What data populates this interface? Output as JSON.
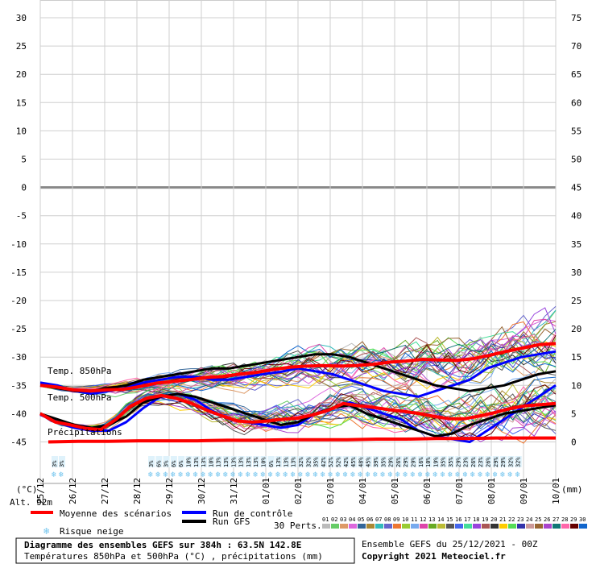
{
  "chart_data": {
    "type": "line",
    "left_axis": {
      "ticks": [
        "30",
        "25",
        "20",
        "15",
        "10",
        "5",
        "0",
        "-5",
        "-10",
        "-15",
        "-20",
        "-25",
        "-30",
        "-35",
        "-40",
        "-45"
      ],
      "unit": "(°C)"
    },
    "right_axis": {
      "ticks": [
        "75",
        "70",
        "65",
        "60",
        "55",
        "50",
        "45",
        "40",
        "35",
        "30",
        "25",
        "20",
        "15",
        "10",
        "5",
        "0"
      ],
      "unit": "(mm)"
    },
    "x_ticks": [
      "25/12",
      "26/12",
      "27/12",
      "28/12",
      "29/12",
      "30/12",
      "31/12",
      "01/01",
      "02/01",
      "03/01",
      "04/01",
      "05/01",
      "06/01",
      "07/01",
      "08/01",
      "09/01",
      "10/01"
    ],
    "annotations": {
      "t850": "Temp. 850hPa",
      "t500": "Temp. 500hPa",
      "precip": "Précipitations",
      "altitude": "Alt. 92m"
    },
    "snow_risk_pct": [
      "3%",
      "3%",
      "3%",
      "6%",
      "3%",
      "6%",
      "6%",
      "10%",
      "13%",
      "13%",
      "10%",
      "13%",
      "13%",
      "13%",
      "13%",
      "13%",
      "13%",
      "10%",
      "6%",
      "13%",
      "13%",
      "13%",
      "32%",
      "32%",
      "35%",
      "42%",
      "52%",
      "52%",
      "42%",
      "45%",
      "48%",
      "45%",
      "39%",
      "35%",
      "29%",
      "26%",
      "29%",
      "29%",
      "16%",
      "10%",
      "19%",
      "35%",
      "35%",
      "29%",
      "23%",
      "26%",
      "23%",
      "26%",
      "29%",
      "29%",
      "32%",
      "32%"
    ],
    "series": [
      {
        "name": "Moyenne des scénarios",
        "color": "#ff0000",
        "t850": [
          -35,
          -35.3,
          -35.8,
          -36,
          -35.8,
          -35.7,
          -35.2,
          -34.6,
          -34.3,
          -34,
          -33.6,
          -33.4,
          -33,
          -32.7,
          -32.2,
          -31.8,
          -31.6,
          -31.5,
          -31.6,
          -31.5,
          -31.3,
          -30.9,
          -30.7,
          -30.4,
          -30.5,
          -30.6,
          -30.3,
          -29.7,
          -29,
          -28.4,
          -27.8,
          -27.6
        ],
        "t500": [
          -40,
          -41.5,
          -42,
          -42.6,
          -42.8,
          -41,
          -38.6,
          -37.3,
          -36.8,
          -37.3,
          -38.2,
          -39.4,
          -40.4,
          -41.3,
          -41.5,
          -41.3,
          -41,
          -40.8,
          -40.2,
          -39.4,
          -38.2,
          -38.6,
          -38.9,
          -39.3,
          -39.6,
          -40,
          -40.5,
          -40.9,
          -40.9,
          -40.4,
          -39.8,
          -39.1,
          -38.6,
          -38.4,
          -38.2
        ],
        "precip": [
          0,
          0.1,
          0.1,
          0.2,
          0.2,
          0.2,
          0.3,
          0.3,
          0.4,
          0.4,
          0.4,
          0.5,
          0.5,
          0.6,
          0.6,
          0.7,
          0.7,
          0.7
        ]
      },
      {
        "name": "Run de contrôle",
        "color": "#0000ff",
        "t850": [
          -34.5,
          -35,
          -36,
          -36.5,
          -36,
          -35.5,
          -34.5,
          -34,
          -33.5,
          -33.5,
          -34,
          -34,
          -33.5,
          -33,
          -32.6,
          -32,
          -32.5,
          -33,
          -34,
          -35,
          -36,
          -36.5,
          -37,
          -36,
          -35,
          -34,
          -32,
          -31,
          -30,
          -29.5,
          -29
        ],
        "t500": [
          -40.2,
          -41.5,
          -42.5,
          -43,
          -43,
          -41.5,
          -39,
          -37,
          -36.5,
          -37.5,
          -39.5,
          -41,
          -41.5,
          -42,
          -42.5,
          -42,
          -40,
          -39,
          -38,
          -39,
          -40,
          -41,
          -43,
          -44,
          -44.5,
          -45,
          -43,
          -41,
          -39,
          -37,
          -35
        ]
      },
      {
        "name": "Run GFS",
        "color": "#000000",
        "t850": [
          -35,
          -35.5,
          -36,
          -36,
          -35.5,
          -35,
          -34,
          -33.5,
          -33,
          -32.5,
          -32,
          -32,
          -31.5,
          -31,
          -30.5,
          -30,
          -29.5,
          -29.5,
          -30,
          -31,
          -32,
          -33,
          -34,
          -35,
          -35.5,
          -36,
          -35.5,
          -35,
          -34,
          -33,
          -32.5
        ],
        "t500": [
          -40,
          -41,
          -42,
          -42.5,
          -42,
          -40.5,
          -38,
          -37,
          -36.5,
          -37,
          -38,
          -39,
          -40,
          -41,
          -42,
          -41.5,
          -40,
          -39,
          -38.5,
          -40,
          -41,
          -42,
          -43,
          -44,
          -43.5,
          -42,
          -41,
          -40,
          -39.5,
          -39,
          -38.5
        ]
      }
    ],
    "perturbations": {
      "label": "30 Perts.",
      "numbers": [
        "01",
        "02",
        "03",
        "04",
        "05",
        "06",
        "07",
        "08",
        "09",
        "10",
        "11",
        "12",
        "13",
        "14",
        "15",
        "16",
        "17",
        "18",
        "19",
        "20",
        "21",
        "22",
        "23",
        "24",
        "25",
        "26",
        "27",
        "28",
        "29",
        "30"
      ],
      "colors": [
        "#bbbbbb",
        "#66cc66",
        "#dd9966",
        "#dd66dd",
        "#336699",
        "#aa8833",
        "#33bbbb",
        "#6666cc",
        "#ee7733",
        "#99cc33",
        "#77aaee",
        "#dd44aa",
        "#66aa22",
        "#bbbb33",
        "#555555",
        "#4466ee",
        "#44dd99",
        "#9944dd",
        "#aa5555",
        "#333333",
        "#ffcc00",
        "#55dd55",
        "#3333aa",
        "#cc9999",
        "#996633",
        "#aa44cc",
        "#117777",
        "#ff66aa",
        "#660000",
        "#1166cc"
      ]
    },
    "legend": {
      "mean": "Moyenne des scénarios",
      "control": "Run de contrôle",
      "gfs": "Run GFS",
      "snow": "Risque neige"
    },
    "title": "Diagramme des ensembles GEFS sur 384h : 63.5N 142.8E",
    "subtitle": "Températures 850hPa et 500hPa (°C) , précipitations (mm)",
    "run_info": "Ensemble GEFS du 25/12/2021 - 00Z",
    "copyright": "Copyright 2021 Meteociel.fr"
  }
}
